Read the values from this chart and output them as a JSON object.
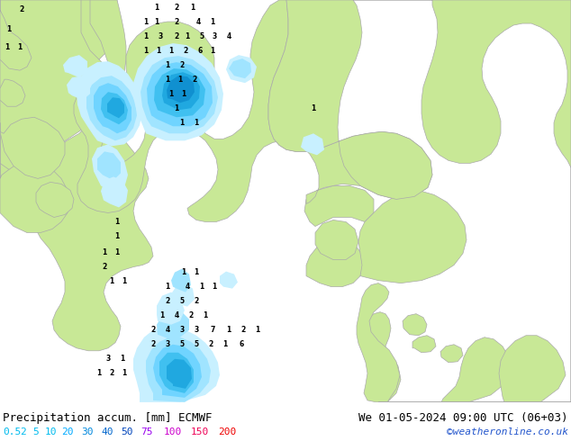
{
  "title_left": "Precipitation accum. [mm] ECMWF",
  "title_right": "We 01-05-2024 09:00 UTC (06+03)",
  "credit": "©weatheronline.co.uk",
  "colorbar_values": [
    "0.5",
    "2",
    "5",
    "10",
    "20",
    "30",
    "40",
    "50",
    "75",
    "100",
    "150",
    "200"
  ],
  "colorbar_text_colors": [
    "#00bbee",
    "#00bbee",
    "#00bbee",
    "#00bbee",
    "#00aaff",
    "#0088dd",
    "#0066cc",
    "#0044bb",
    "#9900ee",
    "#cc00cc",
    "#ee0055",
    "#ee0000"
  ],
  "bg_color": "#ffffff",
  "sea_color": "#d8eef8",
  "land_color": "#c8e896",
  "border_color": "#aaaaaa",
  "title_fontsize": 9,
  "credit_fontsize": 8,
  "colorbar_fontsize": 8,
  "bottom_bg": "#e8ede8",
  "precip_colors": {
    "p05": "#c8f0ff",
    "p2": "#a0e4ff",
    "p5": "#70d4ff",
    "p10": "#40c0f0",
    "p20": "#20a8e0",
    "p30": "#1090d0",
    "p40": "#0870b8",
    "p50": "#0050a0"
  },
  "numbers": [
    [
      24,
      10,
      "2"
    ],
    [
      10,
      32,
      "1"
    ],
    [
      8,
      52,
      "1"
    ],
    [
      22,
      52,
      "1"
    ],
    [
      174,
      8,
      "1"
    ],
    [
      196,
      8,
      "2"
    ],
    [
      214,
      8,
      "1"
    ],
    [
      162,
      24,
      "1"
    ],
    [
      174,
      24,
      "1"
    ],
    [
      196,
      24,
      "2"
    ],
    [
      220,
      24,
      "4"
    ],
    [
      236,
      24,
      "1"
    ],
    [
      162,
      40,
      "1"
    ],
    [
      178,
      40,
      "3"
    ],
    [
      196,
      40,
      "2"
    ],
    [
      208,
      40,
      "1"
    ],
    [
      224,
      40,
      "5"
    ],
    [
      238,
      40,
      "3"
    ],
    [
      254,
      40,
      "4"
    ],
    [
      162,
      56,
      "1"
    ],
    [
      176,
      56,
      "1"
    ],
    [
      190,
      56,
      "1"
    ],
    [
      206,
      56,
      "2"
    ],
    [
      222,
      56,
      "6"
    ],
    [
      236,
      56,
      "1"
    ],
    [
      186,
      72,
      "1"
    ],
    [
      202,
      72,
      "2"
    ],
    [
      186,
      88,
      "1"
    ],
    [
      200,
      88,
      "1"
    ],
    [
      216,
      88,
      "2"
    ],
    [
      190,
      104,
      "1"
    ],
    [
      204,
      104,
      "1"
    ],
    [
      196,
      120,
      "1"
    ],
    [
      202,
      136,
      "1"
    ],
    [
      218,
      136,
      "1"
    ],
    [
      348,
      120,
      "1"
    ],
    [
      130,
      246,
      "1"
    ],
    [
      130,
      262,
      "1"
    ],
    [
      116,
      280,
      "1"
    ],
    [
      130,
      280,
      "1"
    ],
    [
      116,
      296,
      "2"
    ],
    [
      124,
      312,
      "1"
    ],
    [
      138,
      312,
      "1"
    ],
    [
      204,
      302,
      "1"
    ],
    [
      218,
      302,
      "1"
    ],
    [
      186,
      318,
      "1"
    ],
    [
      208,
      318,
      "4"
    ],
    [
      224,
      318,
      "1"
    ],
    [
      238,
      318,
      "1"
    ],
    [
      186,
      334,
      "2"
    ],
    [
      202,
      334,
      "5"
    ],
    [
      218,
      334,
      "2"
    ],
    [
      180,
      350,
      "1"
    ],
    [
      196,
      350,
      "4"
    ],
    [
      212,
      350,
      "2"
    ],
    [
      228,
      350,
      "1"
    ],
    [
      170,
      366,
      "2"
    ],
    [
      186,
      366,
      "4"
    ],
    [
      202,
      366,
      "3"
    ],
    [
      218,
      366,
      "3"
    ],
    [
      236,
      366,
      "7"
    ],
    [
      254,
      366,
      "1"
    ],
    [
      270,
      366,
      "2"
    ],
    [
      286,
      366,
      "1"
    ],
    [
      170,
      382,
      "2"
    ],
    [
      186,
      382,
      "3"
    ],
    [
      202,
      382,
      "5"
    ],
    [
      218,
      382,
      "5"
    ],
    [
      234,
      382,
      "2"
    ],
    [
      250,
      382,
      "1"
    ],
    [
      268,
      382,
      "6"
    ],
    [
      120,
      398,
      "3"
    ],
    [
      136,
      398,
      "1"
    ],
    [
      110,
      414,
      "1"
    ],
    [
      124,
      414,
      "2"
    ],
    [
      138,
      414,
      "1"
    ]
  ]
}
